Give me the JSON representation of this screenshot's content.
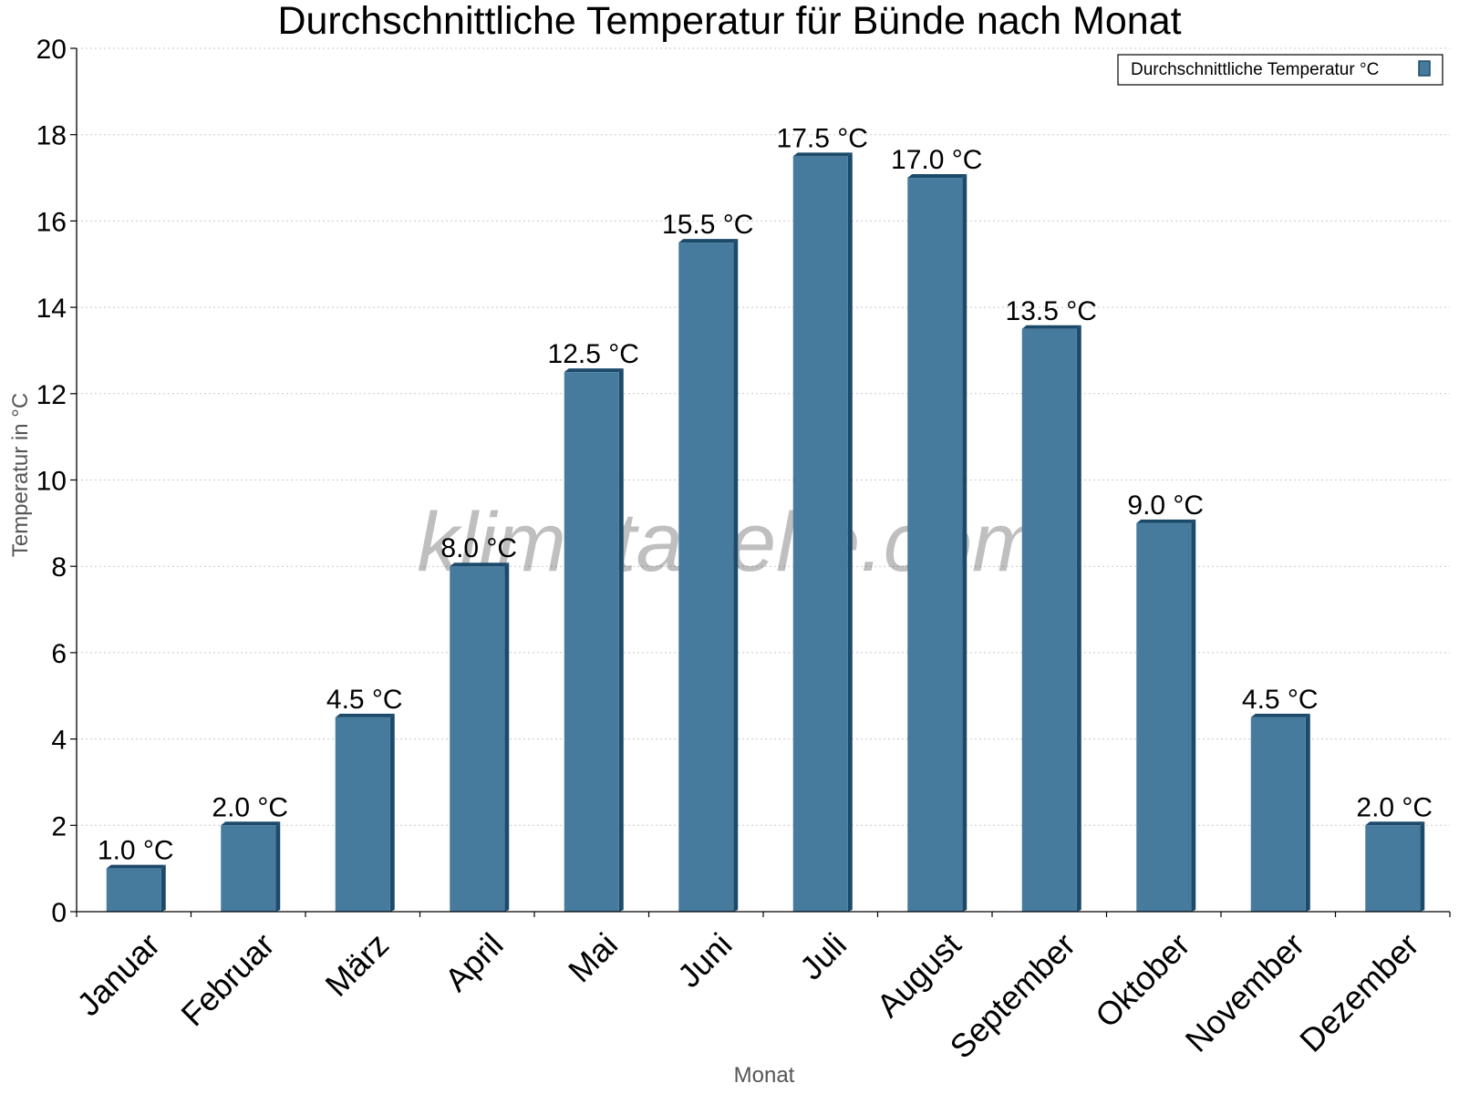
{
  "chart_data": {
    "type": "bar",
    "title": "Durchschnittliche Temperatur für Bünde nach Monat",
    "xlabel": "Monat",
    "ylabel": "Temperatur in °C",
    "categories": [
      "Januar",
      "Februar",
      "März",
      "April",
      "Mai",
      "Juni",
      "Juli",
      "August",
      "September",
      "Oktober",
      "November",
      "Dezember"
    ],
    "series": [
      {
        "name": "Durchschnittliche Temperatur °C",
        "values": [
          1.0,
          2.0,
          4.5,
          8.0,
          12.5,
          15.5,
          17.5,
          17.0,
          13.5,
          9.0,
          4.5,
          2.0
        ],
        "data_labels": [
          "1.0 °C",
          "2.0 °C",
          "4.5 °C",
          "8.0 °C",
          "12.5 °C",
          "15.5 °C",
          "17.5 °C",
          "17.0 °C",
          "13.5 °C",
          "9.0 °C",
          "4.5 °C",
          "2.0 °C"
        ]
      }
    ],
    "ylim": [
      0,
      20
    ],
    "yticks": [
      0,
      2,
      4,
      6,
      8,
      10,
      12,
      14,
      16,
      18,
      20
    ],
    "grid": true,
    "legend_position": "top-right",
    "watermark": "klimatabelle.com",
    "colors": {
      "bar": "#467b9e",
      "bar_shade": "#1c4a6b",
      "grid": "#c8c8c8"
    }
  }
}
